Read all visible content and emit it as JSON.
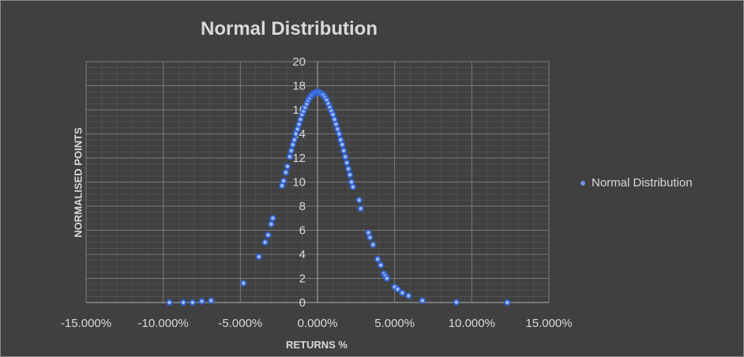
{
  "chart_data": {
    "type": "scatter",
    "title": "Normal Distribution",
    "xlabel": "RETURNS %",
    "ylabel": "NORMALISED POINTS",
    "xlim": [
      -15,
      15
    ],
    "ylim": [
      0,
      20
    ],
    "x_ticks": [
      "-15.000%",
      "-10.000%",
      "-5.000%",
      "0.000%",
      "5.000%",
      "10.000%",
      "15.000%"
    ],
    "y_ticks": [
      "0",
      "2",
      "4",
      "6",
      "8",
      "10",
      "12",
      "14",
      "16",
      "18",
      "20"
    ],
    "grid": true,
    "legend": "right",
    "series": [
      {
        "name": "Normal Distribution",
        "color": "#4f7fe0",
        "points": [
          [
            -9.6,
            0.0
          ],
          [
            -8.7,
            0.0
          ],
          [
            -8.1,
            0.0
          ],
          [
            -7.5,
            0.1
          ],
          [
            -6.9,
            0.15
          ],
          [
            -4.8,
            1.6
          ],
          [
            -3.8,
            3.8
          ],
          [
            -3.4,
            5.0
          ],
          [
            -3.2,
            5.6
          ],
          [
            -3.0,
            6.5
          ],
          [
            -2.9,
            7.0
          ],
          [
            -2.3,
            9.7
          ],
          [
            -2.2,
            10.1
          ],
          [
            -2.05,
            10.8
          ],
          [
            -1.95,
            11.3
          ],
          [
            -1.8,
            12.1
          ],
          [
            -1.7,
            12.6
          ],
          [
            -1.6,
            13.1
          ],
          [
            -1.5,
            13.5
          ],
          [
            -1.4,
            14.0
          ],
          [
            -1.3,
            14.4
          ],
          [
            -1.2,
            14.8
          ],
          [
            -1.1,
            15.2
          ],
          [
            -1.0,
            15.6
          ],
          [
            -0.9,
            15.9
          ],
          [
            -0.8,
            16.2
          ],
          [
            -0.7,
            16.5
          ],
          [
            -0.6,
            16.8
          ],
          [
            -0.5,
            17.0
          ],
          [
            -0.4,
            17.2
          ],
          [
            -0.3,
            17.3
          ],
          [
            -0.2,
            17.4
          ],
          [
            -0.1,
            17.45
          ],
          [
            0.0,
            17.5
          ],
          [
            0.1,
            17.45
          ],
          [
            0.2,
            17.4
          ],
          [
            0.3,
            17.3
          ],
          [
            0.4,
            17.2
          ],
          [
            0.5,
            17.0
          ],
          [
            0.6,
            16.8
          ],
          [
            0.7,
            16.5
          ],
          [
            0.8,
            16.2
          ],
          [
            0.9,
            15.9
          ],
          [
            1.0,
            15.6
          ],
          [
            1.1,
            15.2
          ],
          [
            1.2,
            14.8
          ],
          [
            1.3,
            14.4
          ],
          [
            1.4,
            14.0
          ],
          [
            1.5,
            13.5
          ],
          [
            1.6,
            13.1
          ],
          [
            1.7,
            12.6
          ],
          [
            1.8,
            12.1
          ],
          [
            1.9,
            11.6
          ],
          [
            2.0,
            11.1
          ],
          [
            2.1,
            10.6
          ],
          [
            2.2,
            10.0
          ],
          [
            2.3,
            9.6
          ],
          [
            2.7,
            8.5
          ],
          [
            2.8,
            7.8
          ],
          [
            3.3,
            5.8
          ],
          [
            3.4,
            5.4
          ],
          [
            3.6,
            4.8
          ],
          [
            3.9,
            3.6
          ],
          [
            4.1,
            3.1
          ],
          [
            4.3,
            2.4
          ],
          [
            4.4,
            2.2
          ],
          [
            4.5,
            2.0
          ],
          [
            5.0,
            1.3
          ],
          [
            5.2,
            1.1
          ],
          [
            5.5,
            0.8
          ],
          [
            5.9,
            0.55
          ],
          [
            6.8,
            0.15
          ],
          [
            9.0,
            0.02
          ],
          [
            12.3,
            0.0
          ]
        ]
      }
    ]
  }
}
